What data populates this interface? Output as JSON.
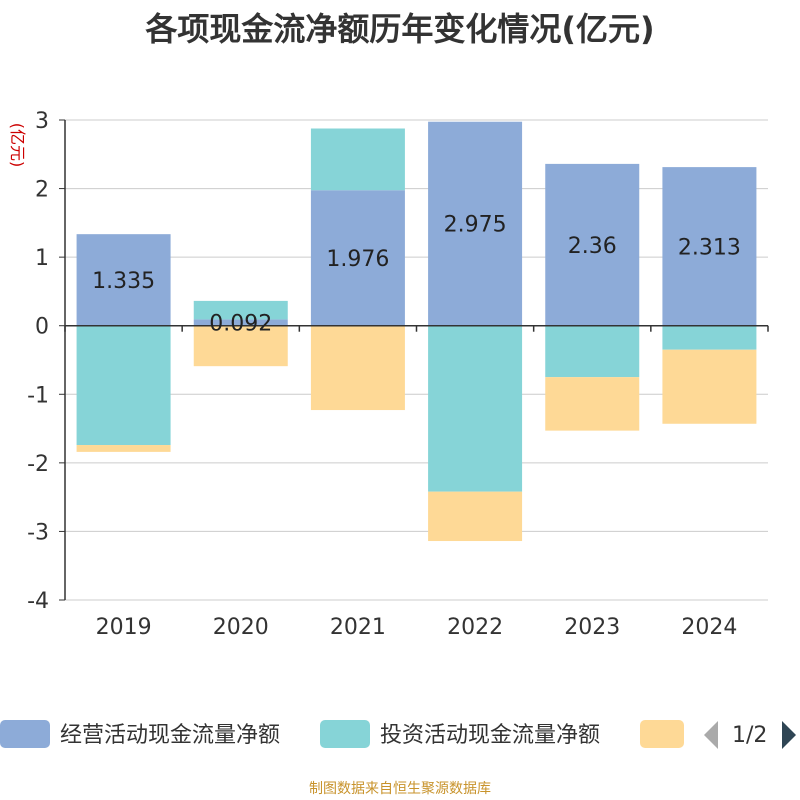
{
  "title": "各项现金流净额历年变化情况(亿元)",
  "source_note": "制图数据来自恒生聚源数据库",
  "legend_pager": "1/2",
  "colors": {
    "operating": "#8dabd8",
    "investing": "#86d4d7",
    "financing": "#fed996",
    "axis": "#333333",
    "grid": "#cccccc",
    "ylabel": "#cc0000",
    "pager_prev": "#aaaaaa",
    "pager_next": "#2f4554"
  },
  "chart_data": {
    "type": "bar",
    "stacked": true,
    "title": "各项现金流净额历年变化情况(亿元)",
    "ylabel": "(亿元)",
    "xlabel": "",
    "categories": [
      "2019",
      "2020",
      "2021",
      "2022",
      "2023",
      "2024"
    ],
    "ylim": [
      -4,
      3
    ],
    "yticks": [
      -4,
      -3,
      -2,
      -1,
      0,
      1,
      2,
      3
    ],
    "grid": true,
    "legend_position": "bottom",
    "series": [
      {
        "name": "经营活动现金流量净额",
        "color_key": "operating",
        "values": [
          1.335,
          0.092,
          1.976,
          2.975,
          2.36,
          2.313
        ],
        "labels": [
          "1.335",
          "0.092",
          "1.976",
          "2.975",
          "2.36",
          "2.313"
        ]
      },
      {
        "name": "投资活动现金流量净额",
        "color_key": "investing",
        "values": [
          -1.74,
          0.27,
          0.9,
          -2.42,
          -0.75,
          -0.35
        ]
      },
      {
        "name": "",
        "color_key": "financing",
        "values": [
          -0.1,
          -0.59,
          -1.23,
          -0.72,
          -0.78,
          -1.08
        ]
      }
    ]
  }
}
